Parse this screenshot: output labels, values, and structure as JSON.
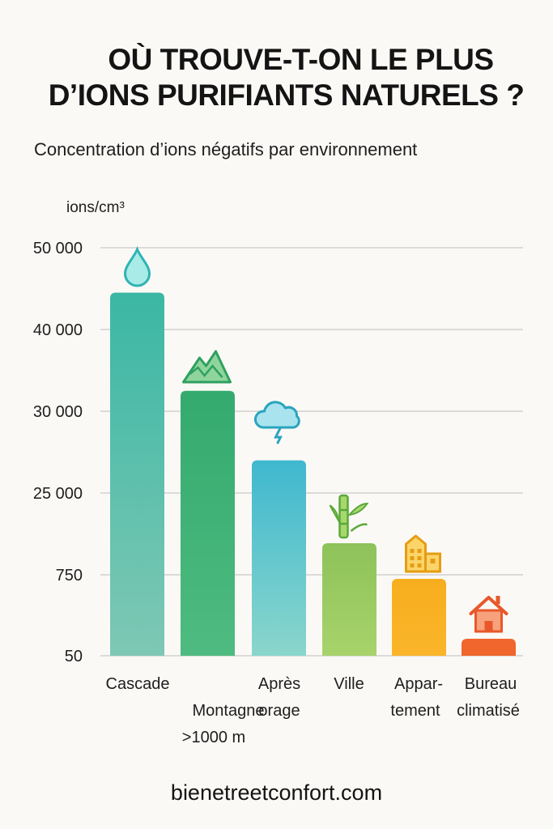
{
  "title": {
    "line1": "OÙ TROUVE-T-ON LE PLUS",
    "line2": "D’IONS PURIFIANTS NATURELS ?"
  },
  "subtitle": "Concentration d’ions négatifs par environnement",
  "footer": "bienetreetconfort.com",
  "chart_data": {
    "type": "bar",
    "ylabel": "ions/cm³",
    "y_ticks": [
      "50 000",
      "40 000",
      "30 000",
      "25 000",
      "750",
      "50"
    ],
    "categories": [
      {
        "lines": [
          "Cascade"
        ],
        "icon": "water-drop-icon",
        "color_top": "#3bb7a4",
        "color_bottom": "#7ec8b4"
      },
      {
        "lines": [
          "Montagne",
          ">1000 m"
        ],
        "icon": "mountain-icon",
        "color_top": "#34aa6e",
        "color_bottom": "#4fbb80"
      },
      {
        "lines": [
          "Après",
          "orage"
        ],
        "icon": "storm-cloud-icon",
        "color_top": "#3fb8cf",
        "color_bottom": "#8ad6cc"
      },
      {
        "lines": [
          "Ville"
        ],
        "icon": "bamboo-icon",
        "color_top": "#8ec25a",
        "color_bottom": "#a8d36b"
      },
      {
        "lines": [
          "Appar-",
          "tement"
        ],
        "icon": "building-icon",
        "color_top": "#f7ae1e",
        "color_bottom": "#fbb52a"
      },
      {
        "lines": [
          "Bureau",
          "climatisé"
        ],
        "icon": "house-icon",
        "color_top": "#f0662d",
        "color_bottom": "#f0662d"
      }
    ],
    "values": [
      44500,
      32500,
      27000,
      950,
      450,
      15
    ],
    "grid": true
  },
  "colors": {
    "background": "#fbf9f6",
    "gridline": "#c9c9c9",
    "text": "#1c1c1c"
  }
}
